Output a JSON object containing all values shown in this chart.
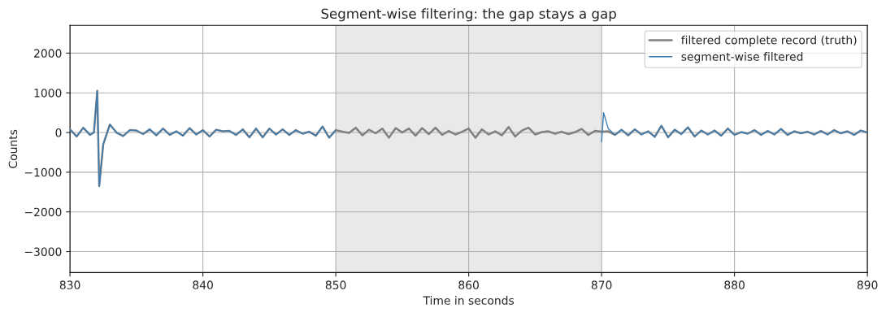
{
  "chart_data": {
    "type": "line",
    "title": "Segment-wise filtering: the gap stays a gap",
    "xlabel": "Time in seconds",
    "ylabel": "Counts",
    "series": [
      {
        "name": "filtered complete record (truth)",
        "color": "#808080",
        "x": [
          830,
          830.5,
          831,
          831.5,
          831.8,
          832.05,
          832.2,
          832.5,
          833,
          833.5,
          834,
          834.5,
          835,
          835.5,
          836,
          836.5,
          837,
          837.5,
          838,
          838.5,
          839,
          839.5,
          840,
          840.5,
          841,
          841.5,
          842,
          842.5,
          843,
          843.5,
          844,
          844.5,
          845,
          845.5,
          846,
          846.5,
          847,
          847.5,
          848,
          848.5,
          849,
          849.5,
          850,
          850.5,
          851,
          851.5,
          852,
          852.5,
          853,
          853.5,
          854,
          854.5,
          855,
          855.5,
          856,
          856.5,
          857,
          857.5,
          858,
          858.5,
          859,
          859.5,
          860,
          860.5,
          861,
          861.5,
          862,
          862.5,
          863,
          863.5,
          864,
          864.5,
          865,
          865.5,
          866,
          866.5,
          867,
          867.5,
          868,
          868.5,
          869,
          869.5,
          870,
          870.5,
          871,
          871.5,
          872,
          872.5,
          873,
          873.5,
          874,
          874.5,
          875,
          875.5,
          876,
          876.5,
          877,
          877.5,
          878,
          878.5,
          879,
          879.5,
          880,
          880.5,
          881,
          881.5,
          882,
          882.5,
          883,
          883.5,
          884,
          884.5,
          885,
          885.5,
          886,
          886.5,
          887,
          887.5,
          888,
          888.5,
          889,
          889.5,
          890
        ],
        "values": [
          80,
          -100,
          120,
          -60,
          0,
          1050,
          -1350,
          -300,
          200,
          0,
          -90,
          60,
          50,
          -40,
          80,
          -70,
          100,
          -60,
          30,
          -80,
          110,
          -50,
          60,
          -100,
          70,
          30,
          40,
          -60,
          80,
          -120,
          100,
          -120,
          100,
          -50,
          80,
          -60,
          60,
          -30,
          20,
          -80,
          150,
          -130,
          60,
          20,
          -10,
          120,
          -70,
          70,
          -20,
          100,
          -130,
          110,
          0,
          100,
          -80,
          110,
          -40,
          120,
          -60,
          40,
          -50,
          20,
          100,
          -130,
          80,
          -50,
          30,
          -70,
          140,
          -100,
          50,
          120,
          -50,
          10,
          30,
          -30,
          20,
          -40,
          10,
          90,
          -60,
          40,
          20,
          30,
          -60,
          70,
          -70,
          80,
          -50,
          30,
          -110,
          170,
          -120,
          70,
          -40,
          130,
          -100,
          50,
          -50,
          50,
          -80,
          100,
          -60,
          10,
          -30,
          60,
          -60,
          40,
          -50,
          90,
          -60,
          30,
          -20,
          20,
          -50,
          40,
          -50,
          60,
          -20,
          30,
          -60,
          50,
          0
        ]
      },
      {
        "name": "segment-wise filtered",
        "color": "#3a7db5",
        "x": [
          830,
          830.5,
          831,
          831.5,
          831.8,
          832.05,
          832.2,
          832.5,
          833,
          833.5,
          834,
          834.5,
          835,
          835.5,
          836,
          836.5,
          837,
          837.5,
          838,
          838.5,
          839,
          839.5,
          840,
          840.5,
          841,
          841.5,
          842,
          842.5,
          843,
          843.5,
          844,
          844.5,
          845,
          845.5,
          846,
          846.5,
          847,
          847.5,
          848,
          848.5,
          849,
          849.5,
          850,
          860,
          870,
          870.15,
          870.5,
          871,
          871.5,
          872,
          872.5,
          873,
          873.5,
          874,
          874.5,
          875,
          875.5,
          876,
          876.5,
          877,
          877.5,
          878,
          878.5,
          879,
          879.5,
          880,
          880.5,
          881,
          881.5,
          882,
          882.5,
          883,
          883.5,
          884,
          884.5,
          885,
          885.5,
          886,
          886.5,
          887,
          887.5,
          888,
          888.5,
          889,
          889.5,
          890
        ],
        "values": [
          80,
          -100,
          120,
          -60,
          0,
          1050,
          -1350,
          -300,
          200,
          0,
          -90,
          60,
          50,
          -40,
          80,
          -70,
          100,
          -60,
          30,
          -80,
          110,
          -50,
          60,
          -100,
          70,
          30,
          40,
          -60,
          80,
          -120,
          100,
          -120,
          100,
          -50,
          80,
          -60,
          60,
          -30,
          20,
          -80,
          150,
          -130,
          60,
          null,
          -230,
          500,
          100,
          -60,
          70,
          -70,
          80,
          -50,
          30,
          -110,
          170,
          -120,
          70,
          -40,
          130,
          -100,
          50,
          -50,
          50,
          -80,
          100,
          -60,
          10,
          -30,
          60,
          -60,
          40,
          -50,
          90,
          -60,
          30,
          -20,
          20,
          -50,
          40,
          -50,
          60,
          -20,
          30,
          -60,
          50,
          0
        ]
      }
    ],
    "bands": [
      {
        "axis": "x",
        "from": 850,
        "to": 870,
        "color": "#e9e9e9"
      }
    ],
    "xlim": [
      830,
      890
    ],
    "xticks": [
      830,
      840,
      850,
      860,
      870,
      880,
      890
    ],
    "ylim": [
      -3530,
      2700
    ],
    "yticks": [
      {
        "value": -3000,
        "label": "−3000"
      },
      {
        "value": -2000,
        "label": "−2000"
      },
      {
        "value": -1000,
        "label": "−1000"
      },
      0,
      1000,
      2000
    ],
    "grid": true,
    "legend": "top right"
  }
}
